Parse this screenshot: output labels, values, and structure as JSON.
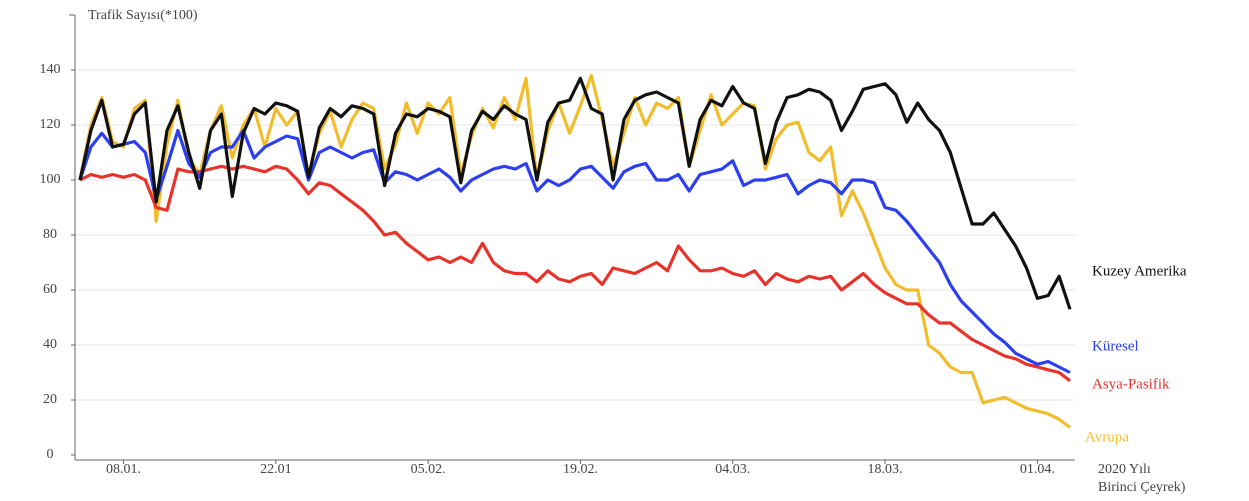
{
  "chart_data": {
    "type": "line",
    "ylabel": "Trafik Sayısı(*100)",
    "xlabel": [
      "2020 Yılı",
      "Birinci Çeyrek)"
    ],
    "categories": [
      null,
      null,
      null,
      null,
      "08.01.",
      null,
      null,
      null,
      null,
      null,
      null,
      null,
      null,
      null,
      null,
      null,
      null,
      null,
      "22.01",
      null,
      null,
      null,
      null,
      null,
      null,
      null,
      null,
      null,
      null,
      null,
      null,
      null,
      "05.02.",
      null,
      null,
      null,
      null,
      null,
      null,
      null,
      null,
      null,
      null,
      null,
      null,
      null,
      "19.02.",
      null,
      null,
      null,
      null,
      null,
      null,
      null,
      null,
      null,
      null,
      null,
      null,
      null,
      "04.03.",
      null,
      null,
      null,
      null,
      null,
      null,
      null,
      null,
      null,
      null,
      null,
      null,
      null,
      "18.03.",
      null,
      null,
      null,
      null,
      null,
      null,
      null,
      null,
      null,
      null,
      null,
      null,
      null,
      "01.04.",
      null,
      null,
      null
    ],
    "ylim": [
      0,
      160
    ],
    "yticks": [
      0,
      20,
      40,
      60,
      80,
      100,
      120,
      140
    ],
    "grid": true,
    "series": [
      {
        "name": "Kuzey Amerika",
        "color": "#111111",
        "values": [
          100,
          118,
          129,
          112,
          113,
          124,
          128,
          92,
          118,
          127,
          110,
          97,
          118,
          124,
          94,
          117,
          126,
          124,
          128,
          127,
          125,
          101,
          119,
          126,
          123,
          127,
          126,
          124,
          98,
          117,
          124,
          123,
          126,
          125,
          123,
          99,
          118,
          125,
          122,
          127,
          124,
          122,
          100,
          121,
          128,
          129,
          137,
          126,
          124,
          100,
          122,
          129,
          131,
          132,
          130,
          128,
          105,
          122,
          129,
          127,
          134,
          128,
          126,
          106,
          121,
          130,
          131,
          133,
          132,
          129,
          118,
          125,
          133,
          134,
          135,
          131,
          121,
          128,
          122,
          118,
          110,
          97,
          84,
          84,
          88,
          82,
          76,
          68,
          57,
          58,
          65,
          53
        ]
      },
      {
        "name": "Küresel",
        "color": "#2b3ff0",
        "values": [
          100,
          112,
          117,
          112,
          113,
          114,
          110,
          93,
          105,
          118,
          106,
          101,
          110,
          112,
          112,
          118,
          108,
          112,
          114,
          116,
          115,
          100,
          110,
          112,
          110,
          108,
          110,
          111,
          99,
          103,
          102,
          100,
          102,
          104,
          101,
          96,
          100,
          102,
          104,
          105,
          104,
          106,
          96,
          100,
          98,
          100,
          104,
          105,
          101,
          97,
          103,
          105,
          106,
          100,
          100,
          102,
          96,
          102,
          103,
          104,
          107,
          98,
          100,
          100,
          101,
          102,
          95,
          98,
          100,
          99,
          95,
          100,
          100,
          99,
          90,
          89,
          85,
          80,
          75,
          70,
          62,
          56,
          52,
          48,
          44,
          41,
          37,
          35,
          33,
          34,
          32,
          30
        ]
      },
      {
        "name": "Asya-Pasifik",
        "color": "#e8332b",
        "values": [
          100,
          102,
          101,
          102,
          101,
          102,
          100,
          90,
          89,
          104,
          103,
          103,
          104,
          105,
          104,
          105,
          104,
          103,
          105,
          104,
          100,
          95,
          99,
          98,
          95,
          92,
          89,
          85,
          80,
          81,
          77,
          74,
          71,
          72,
          70,
          72,
          70,
          77,
          70,
          67,
          66,
          66,
          63,
          67,
          64,
          63,
          65,
          66,
          62,
          68,
          67,
          66,
          68,
          70,
          67,
          76,
          71,
          67,
          67,
          68,
          66,
          65,
          67,
          62,
          66,
          64,
          63,
          65,
          64,
          65,
          60,
          63,
          66,
          62,
          59,
          57,
          55,
          55,
          51,
          48,
          48,
          45,
          42,
          40,
          38,
          36,
          35,
          33,
          32,
          31,
          30,
          27
        ]
      },
      {
        "name": "Avrupa",
        "color": "#f2bd2c",
        "values": [
          100,
          120,
          130,
          114,
          112,
          126,
          129,
          85,
          113,
          129,
          108,
          102,
          118,
          127,
          108,
          120,
          126,
          112,
          126,
          120,
          125,
          101,
          117,
          125,
          112,
          122,
          128,
          126,
          104,
          113,
          128,
          117,
          128,
          124,
          130,
          102,
          116,
          126,
          119,
          130,
          122,
          137,
          100,
          118,
          128,
          117,
          127,
          138,
          122,
          105,
          117,
          130,
          120,
          128,
          126,
          130,
          105,
          118,
          131,
          120,
          124,
          128,
          127,
          104,
          115,
          120,
          121,
          110,
          107,
          112,
          87,
          96,
          88,
          78,
          68,
          62,
          60,
          60,
          40,
          37,
          32,
          30,
          30,
          19,
          20,
          21,
          19,
          17,
          16,
          15,
          13,
          10
        ]
      }
    ]
  }
}
